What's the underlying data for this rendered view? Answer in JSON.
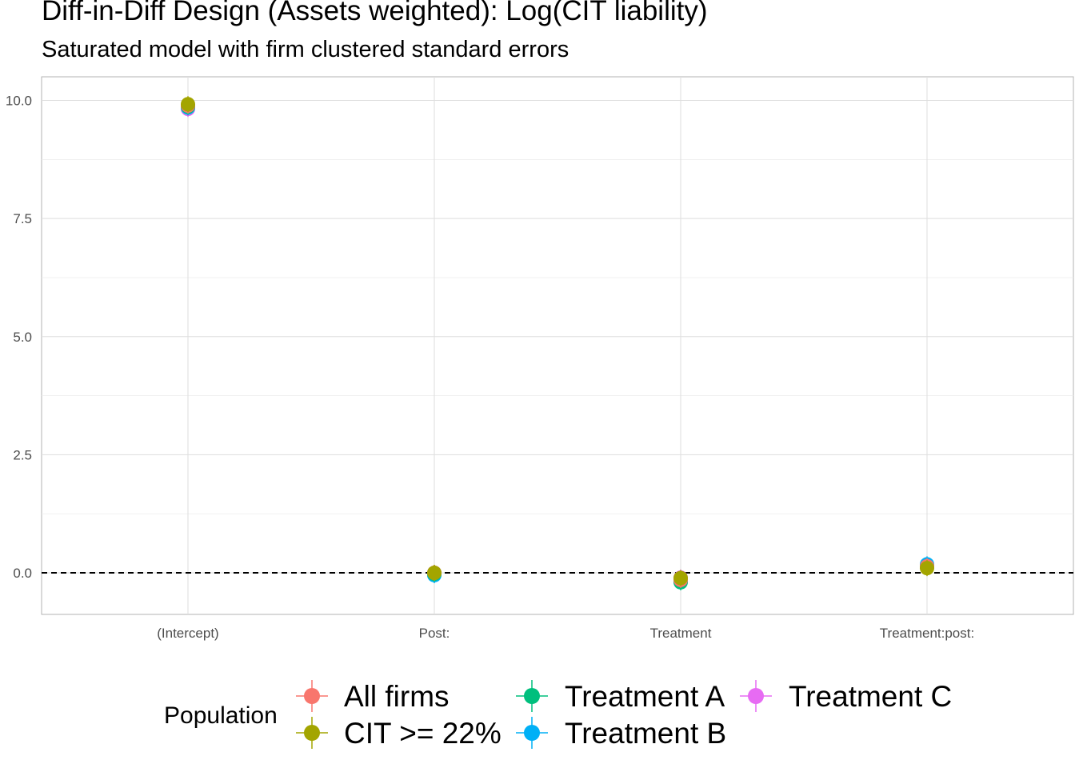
{
  "chart_data": {
    "type": "scatter",
    "title": "Diff-in-Diff Design (Assets weighted): Log(CIT liability)",
    "subtitle": "Saturated model with firm clustered standard errors",
    "xlabel": "",
    "ylabel": "",
    "categories": [
      "(Intercept)",
      "Post:",
      "Treatment",
      "Treatment:post:"
    ],
    "y_ticks": [
      "0.0",
      "2.5",
      "5.0",
      "7.5",
      "10.0"
    ],
    "ylim": [
      -0.88,
      10.5
    ],
    "grid": true,
    "reference_line": {
      "y": 0,
      "style": "dashed"
    },
    "legend": {
      "title": "Population",
      "position": "bottom"
    },
    "series": [
      {
        "name": "All firms",
        "color": "#F8766D",
        "values": [
          9.89,
          0.0,
          -0.15,
          0.14
        ]
      },
      {
        "name": "CIT >= 22%",
        "color": "#A3A500",
        "values": [
          9.92,
          0.0,
          -0.11,
          0.1
        ]
      },
      {
        "name": "Treatment A",
        "color": "#00BF7D",
        "values": [
          9.87,
          -0.02,
          -0.2,
          0.13
        ]
      },
      {
        "name": "Treatment B",
        "color": "#00B0F6",
        "values": [
          9.85,
          -0.05,
          -0.17,
          0.18
        ]
      },
      {
        "name": "Treatment C",
        "color": "#E76BF3",
        "values": [
          9.82,
          0.0,
          -0.1,
          0.12
        ]
      }
    ]
  }
}
